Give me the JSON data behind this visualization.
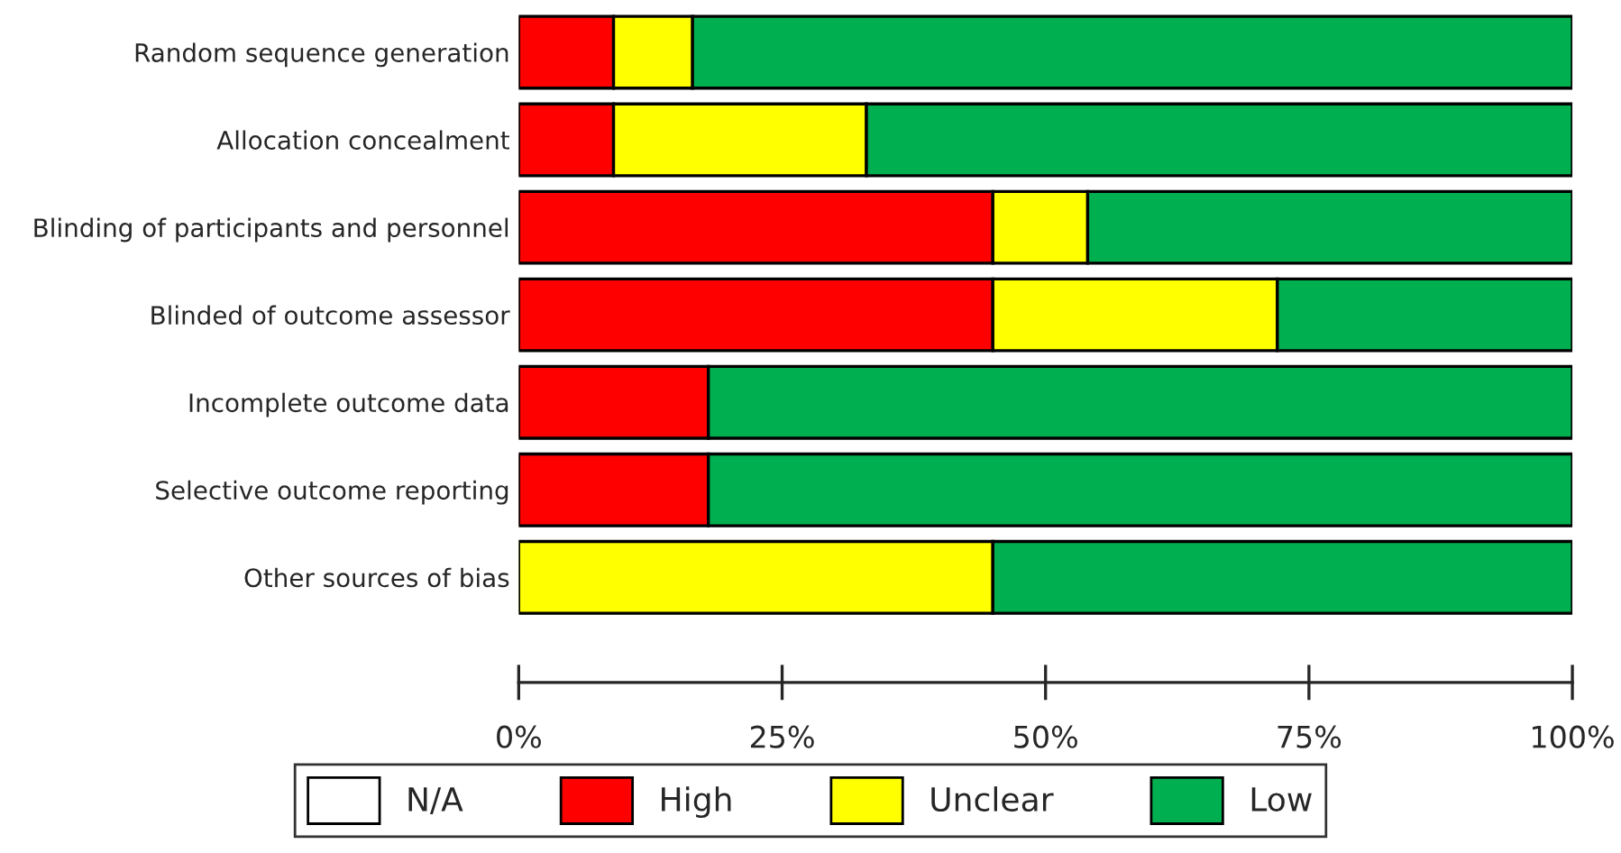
{
  "chart_data": {
    "type": "bar",
    "orientation": "horizontal",
    "stacked": true,
    "categories": [
      "Random sequence generation",
      "Allocation concealment",
      "Blinding of participants and personnel",
      "Blinded of outcome assessor",
      "Incomplete outcome data",
      "Selective outcome reporting",
      "Other sources of bias"
    ],
    "series": [
      {
        "name": "N/A",
        "color": "#ffffff",
        "values": [
          0,
          0,
          0,
          0,
          0,
          0,
          0
        ]
      },
      {
        "name": "High",
        "color": "#ff0000",
        "values": [
          9,
          9,
          45,
          45,
          18,
          18,
          0
        ]
      },
      {
        "name": "Unclear",
        "color": "#ffff00",
        "values": [
          7.5,
          24,
          9,
          27,
          0,
          0,
          45
        ]
      },
      {
        "name": "Low",
        "color": "#00b050",
        "values": [
          83.5,
          67,
          46,
          28,
          82,
          82,
          55
        ]
      }
    ],
    "xlim": [
      0,
      100
    ],
    "xticks": [
      {
        "value": 0,
        "label": "0%"
      },
      {
        "value": 25,
        "label": "25%"
      },
      {
        "value": 50,
        "label": "50%"
      },
      {
        "value": 75,
        "label": "75%"
      },
      {
        "value": 100,
        "label": "100%"
      }
    ],
    "grid": false,
    "legend": "bottom"
  }
}
